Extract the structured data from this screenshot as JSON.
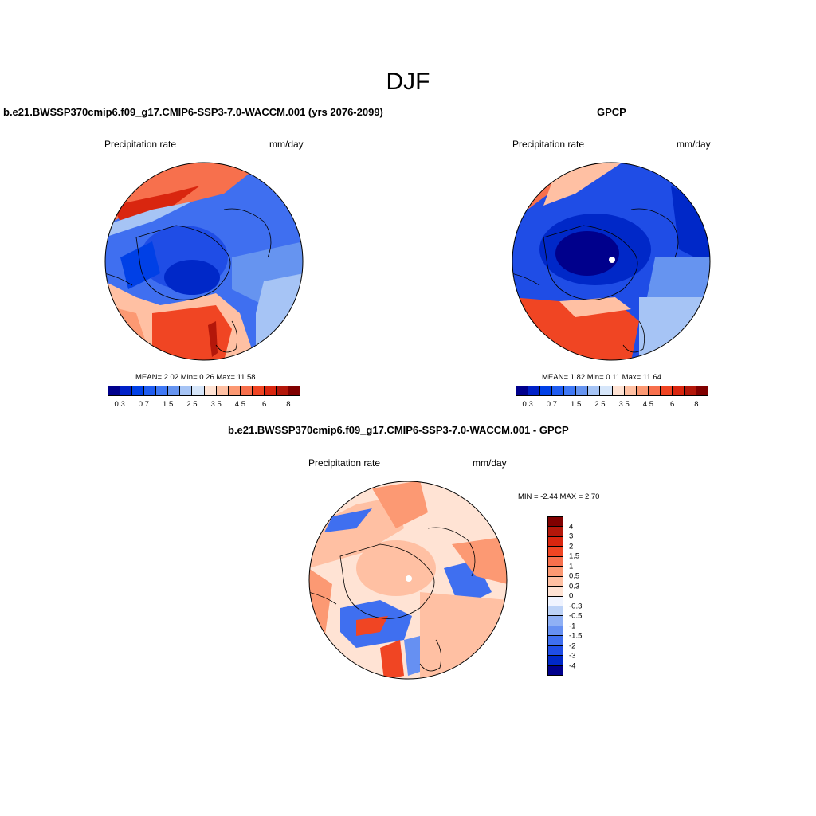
{
  "figure": {
    "title": "DJF"
  },
  "panels": [
    {
      "title": "b.e21.BWSSP370cmip6.f09_g17.CMIP6-SSP3-7.0-WACCM.001 (yrs 2076-2099)",
      "left_label": "Precipitation rate",
      "right_label": "mm/day",
      "stats": "MEAN=   2.02  Min=   0.26  Max=  11.58"
    },
    {
      "title": "GPCP",
      "left_label": "Precipitation rate",
      "right_label": "mm/day",
      "stats": "MEAN=   1.82  Min=   0.11  Max=  11.64"
    },
    {
      "title": "b.e21.BWSSP370cmip6.f09_g17.CMIP6-SSP3-7.0-WACCM.001 - GPCP",
      "left_label": "Precipitation rate",
      "right_label": "mm/day",
      "stats": "MIN =  -2.44 MAX =   2.70"
    }
  ],
  "abs_colorbar": {
    "colors": [
      "#00008c",
      "#0021c8",
      "#0040e6",
      "#1f5cf0",
      "#3f78f5",
      "#6694f0",
      "#a6c4f5",
      "#d6e6fa",
      "#ffe3d4",
      "#ffc0a3",
      "#fc9973",
      "#f7704d",
      "#f04523",
      "#d9260f",
      "#b3170a",
      "#800000"
    ],
    "tick_labels": [
      "0.3",
      "0.7",
      "1.5",
      "2.5",
      "3.5",
      "4.5",
      "6",
      "8"
    ]
  },
  "diff_colorbar": {
    "colors": [
      "#800000",
      "#b3170a",
      "#d9260f",
      "#f04523",
      "#f7704d",
      "#fc9973",
      "#ffc0a3",
      "#ffe3d4",
      "#f0f4ff",
      "#bcd2f7",
      "#8fb0f5",
      "#6690f2",
      "#3f6ff0",
      "#1f4de6",
      "#0028c8",
      "#00008c"
    ],
    "tick_labels": [
      "4",
      "3",
      "2",
      "1.5",
      "1",
      "0.5",
      "0.3",
      "0",
      "-0.3",
      "-0.5",
      "-1",
      "-1.5",
      "-2",
      "-3",
      "-4"
    ]
  }
}
